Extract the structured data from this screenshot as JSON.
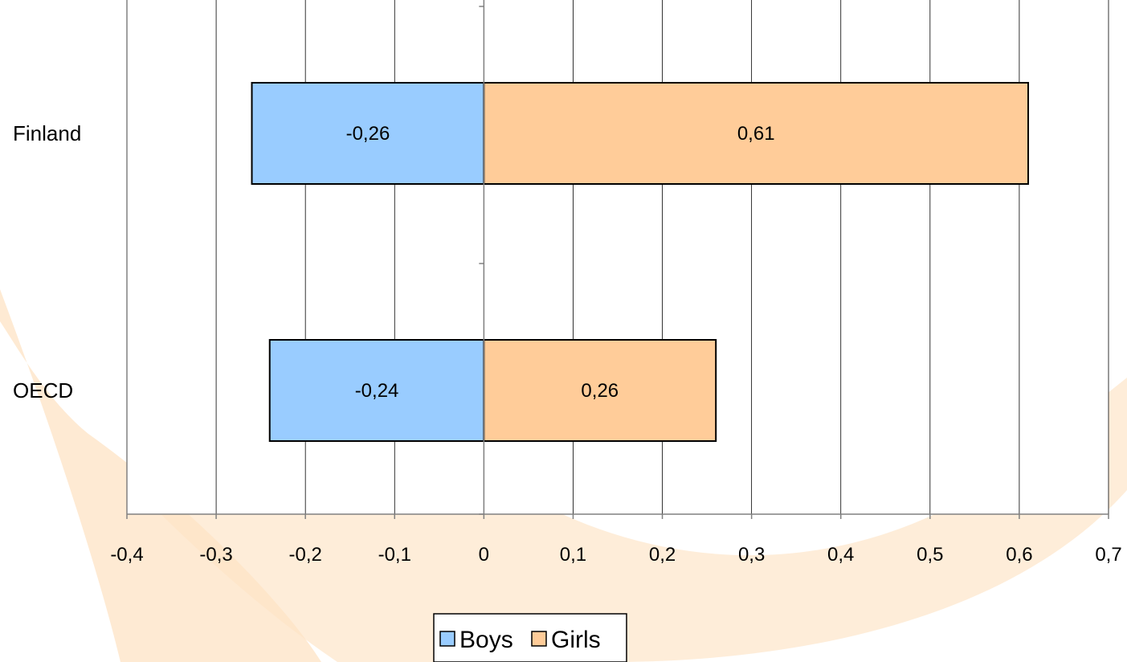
{
  "colors": {
    "background_swoosh": "#fde3c4",
    "boys": "#99ccff",
    "girls": "#ffcc99",
    "grid": "#000000",
    "axis": "#808080"
  },
  "chart_data": {
    "type": "bar",
    "orientation": "horizontal",
    "stacked": true,
    "categories": [
      "Finland",
      "OECD"
    ],
    "series": [
      {
        "name": "Boys",
        "values": [
          -0.26,
          -0.24
        ],
        "labels": [
          "-0,26",
          "-0,24"
        ]
      },
      {
        "name": "Girls",
        "values": [
          0.61,
          0.26
        ],
        "labels": [
          "0,61",
          "0,26"
        ]
      }
    ],
    "xlim": [
      -0.4,
      0.7
    ],
    "xticks": [
      -0.4,
      -0.3,
      -0.2,
      -0.1,
      0,
      0.1,
      0.2,
      0.3,
      0.4,
      0.5,
      0.6,
      0.7
    ],
    "xtick_labels": [
      "-0,4",
      "-0,3",
      "-0,2",
      "-0,1",
      "0",
      "0,1",
      "0,2",
      "0,3",
      "0,4",
      "0,5",
      "0,6",
      "0,7"
    ],
    "grid": true,
    "legend_placement": "bottom-center",
    "title": "",
    "xlabel": "",
    "ylabel": ""
  }
}
